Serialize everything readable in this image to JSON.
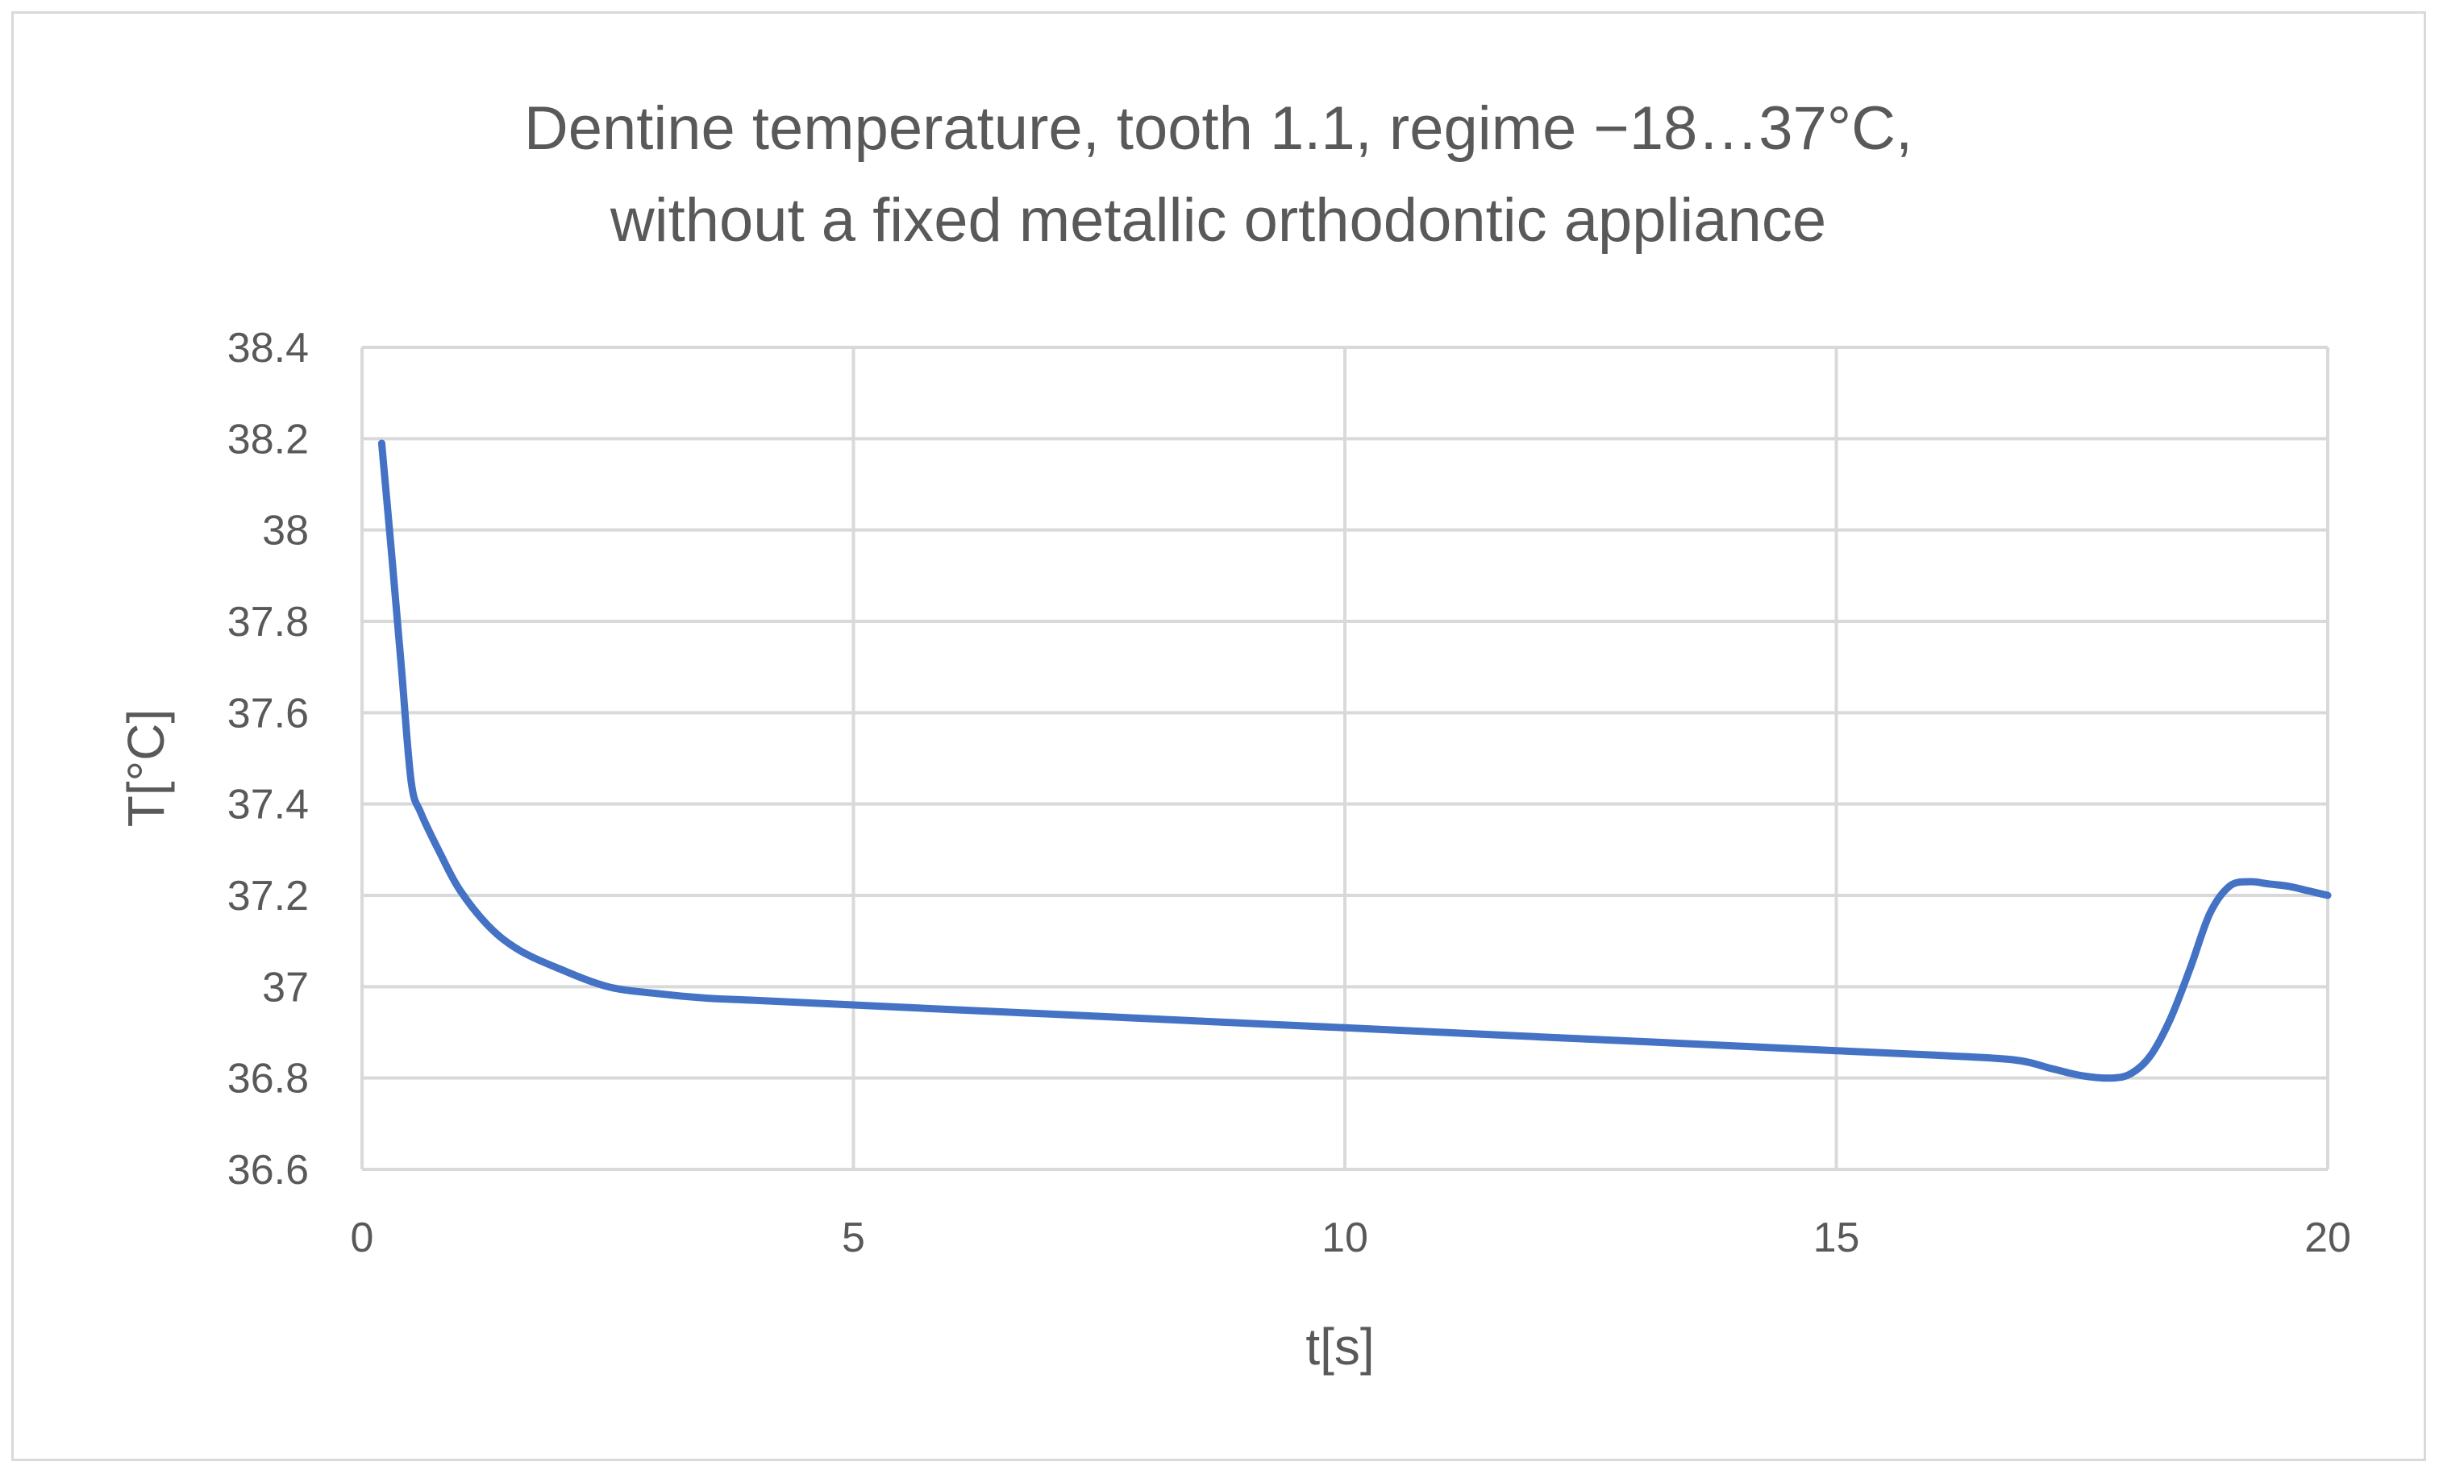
{
  "chart_data": {
    "type": "line",
    "title": "Dentine temperature, tooth 1.1, regime −18…37°C,",
    "title_line2": "without a fixed metallic orthodontic appliance",
    "xlabel": "t[s]",
    "ylabel": "T[°C]",
    "xlim": [
      0,
      20
    ],
    "ylim": [
      36.6,
      38.4
    ],
    "x_ticks": [
      0,
      5,
      10,
      15,
      20
    ],
    "y_ticks": [
      36.6,
      36.8,
      37,
      37.2,
      37.4,
      37.6,
      37.8,
      38,
      38.2,
      38.4
    ],
    "grid": true,
    "legend": "none",
    "series": [
      {
        "color": "#4472c4",
        "x": [
          0.2,
          0.3,
          0.4,
          0.5,
          0.6,
          0.8,
          1.0,
          1.3,
          1.6,
          2.0,
          2.5,
          3.0,
          3.5,
          4.0,
          5.0,
          6.0,
          7.0,
          8.0,
          9.0,
          10.0,
          11.0,
          12.0,
          13.0,
          14.0,
          15.0,
          16.0,
          16.8,
          17.2,
          17.5,
          17.8,
          18.0,
          18.2,
          18.4,
          18.6,
          18.8,
          19.0,
          19.2,
          19.4,
          19.6,
          19.8,
          20.0
        ],
        "y": [
          38.19,
          37.95,
          37.7,
          37.45,
          37.38,
          37.29,
          37.21,
          37.13,
          37.08,
          37.04,
          37.0,
          36.985,
          36.975,
          36.97,
          36.96,
          36.95,
          36.94,
          36.93,
          36.92,
          36.91,
          36.9,
          36.89,
          36.88,
          36.87,
          36.86,
          36.85,
          36.84,
          36.82,
          36.805,
          36.8,
          36.81,
          36.85,
          36.93,
          37.04,
          37.16,
          37.22,
          37.23,
          37.225,
          37.22,
          37.21,
          37.2
        ]
      }
    ]
  }
}
